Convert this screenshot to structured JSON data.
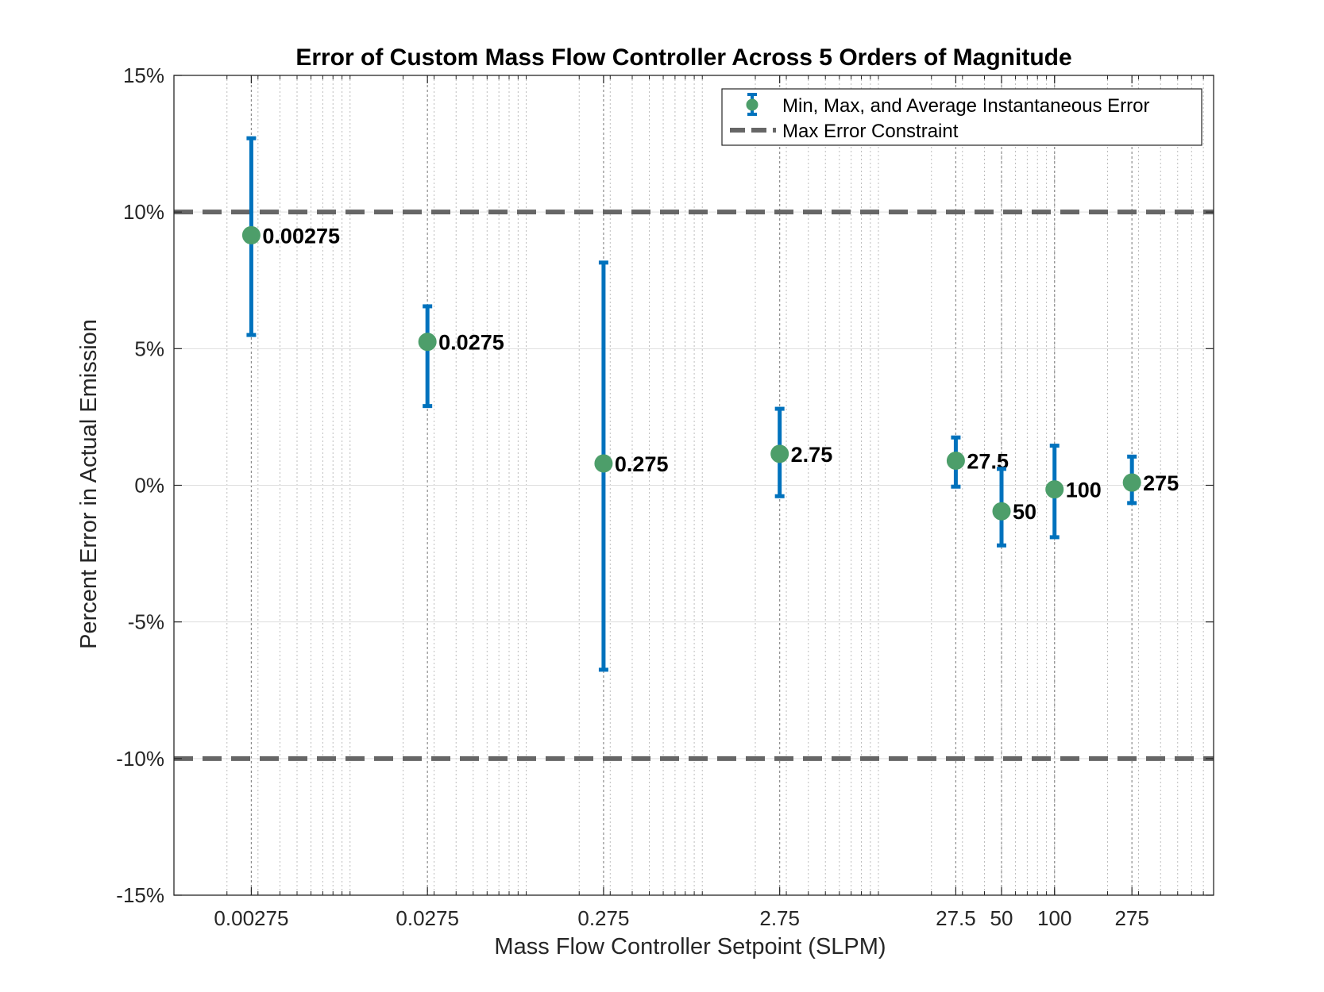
{
  "chart_data": {
    "type": "scatter",
    "title": "Error of Custom Mass Flow Controller Across 5 Orders of Magnitude",
    "xlabel": "Mass Flow Controller Setpoint (SLPM)",
    "ylabel": "Percent Error in Actual Emission",
    "x_scale": "log",
    "xlim": [
      0.001,
      800
    ],
    "ylim": [
      -15,
      15
    ],
    "x_ticks": [
      {
        "value": 0.00275,
        "label": "0.00275"
      },
      {
        "value": 0.0275,
        "label": "0.0275"
      },
      {
        "value": 0.275,
        "label": "0.275"
      },
      {
        "value": 2.75,
        "label": "2.75"
      },
      {
        "value": 27.5,
        "label": "27.5"
      },
      {
        "value": 50,
        "label": "50"
      },
      {
        "value": 100,
        "label": "100"
      },
      {
        "value": 275,
        "label": "275"
      }
    ],
    "y_ticks": [
      {
        "value": 15,
        "label": "15%"
      },
      {
        "value": 10,
        "label": "10%"
      },
      {
        "value": 5,
        "label": "5%"
      },
      {
        "value": 0,
        "label": "0%"
      },
      {
        "value": -5,
        "label": "-5%"
      },
      {
        "value": -10,
        "label": "-10%"
      },
      {
        "value": -15,
        "label": "-15%"
      }
    ],
    "grid": true,
    "series": [
      {
        "name": "Min, Max, and Average Instantaneous Error",
        "color": "#0072BD",
        "marker_color": "#4D9E6A",
        "points": [
          {
            "x": 0.00275,
            "label": "0.00275",
            "avg": 9.15,
            "min": 5.5,
            "max": 12.7
          },
          {
            "x": 0.0275,
            "label": "0.0275",
            "avg": 5.25,
            "min": 2.9,
            "max": 6.55
          },
          {
            "x": 0.275,
            "label": "0.275",
            "avg": 0.8,
            "min": -6.75,
            "max": 8.15
          },
          {
            "x": 2.75,
            "label": "2.75",
            "avg": 1.15,
            "min": -0.4,
            "max": 2.8
          },
          {
            "x": 27.5,
            "label": "27.5",
            "avg": 0.9,
            "min": -0.05,
            "max": 1.75
          },
          {
            "x": 50,
            "label": "50",
            "avg": -0.95,
            "min": -2.2,
            "max": 0.6
          },
          {
            "x": 100,
            "label": "100",
            "avg": -0.15,
            "min": -1.9,
            "max": 1.45
          },
          {
            "x": 275,
            "label": "275",
            "avg": 0.1,
            "min": -0.65,
            "max": 1.05
          }
        ]
      },
      {
        "name": "Max Error Constraint",
        "color": "#666666",
        "style": "dashed",
        "lines_y": [
          10,
          -10
        ]
      }
    ],
    "legend_placement": "top-right"
  }
}
